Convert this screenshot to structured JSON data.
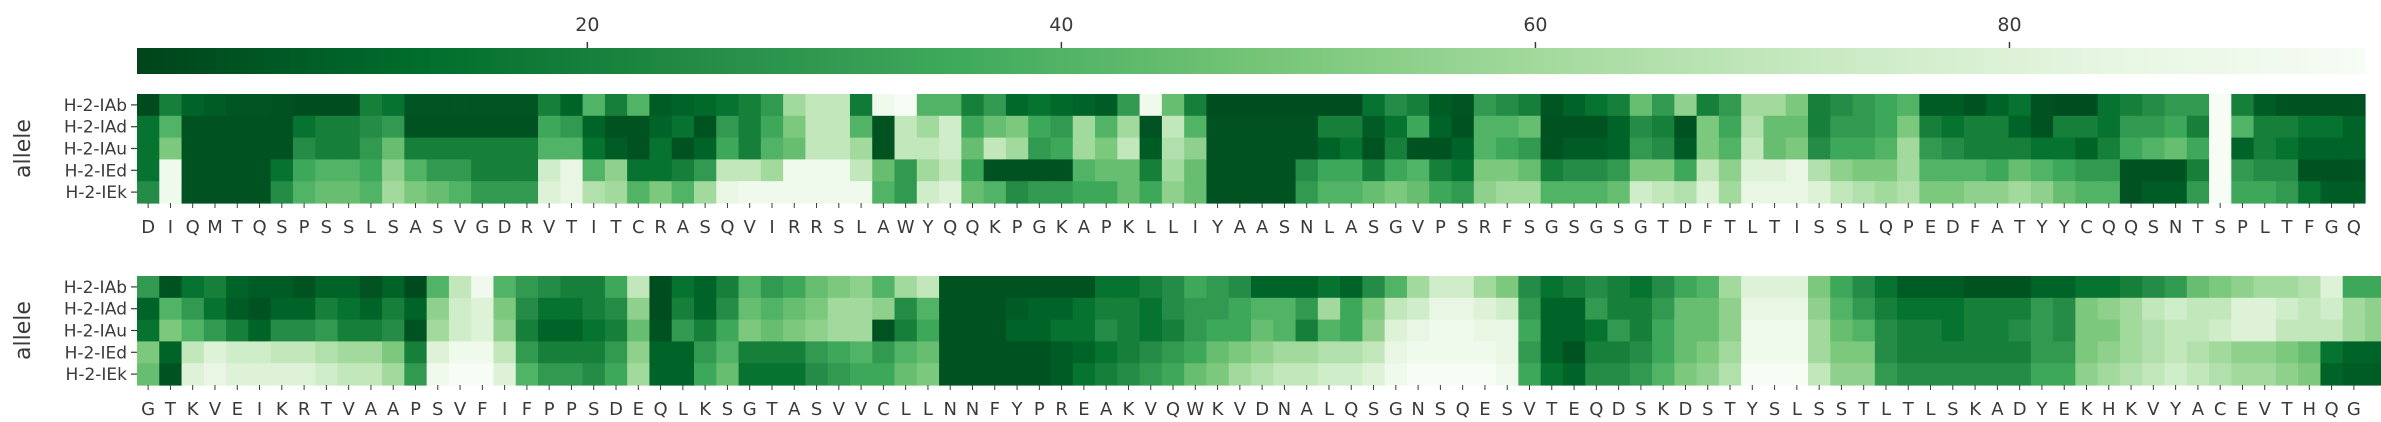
{
  "chart_data": {
    "type": "heatmap",
    "colormap": {
      "name": "Greens_r",
      "stops": [
        "#00441b",
        "#006d2c",
        "#238b45",
        "#41ab5d",
        "#74c476",
        "#a1d99b",
        "#c7e9c0",
        "#e5f5e0",
        "#f7fcf5"
      ],
      "range": [
        1,
        95
      ],
      "ticks": [
        "20",
        "40",
        "60",
        "80"
      ],
      "tick_values": [
        20,
        40,
        60,
        80
      ]
    },
    "ylabel": "allele",
    "alleles": [
      "H-2-IAb",
      "H-2-IAd",
      "H-2-IAu",
      "H-2-IEd",
      "H-2-IEk"
    ],
    "panels": [
      {
        "residues": [
          "D",
          "I",
          "Q",
          "M",
          "T",
          "Q",
          "S",
          "P",
          "S",
          "S",
          "L",
          "S",
          "A",
          "S",
          "V",
          "G",
          "D",
          "R",
          "V",
          "T",
          "I",
          "T",
          "C",
          "R",
          "A",
          "S",
          "Q",
          "V",
          "I",
          "R",
          "R",
          "S",
          "L",
          "A",
          "W",
          "Y",
          "Q",
          "Q",
          "K",
          "P",
          "G",
          "K",
          "A",
          "P",
          "K",
          "L",
          "L",
          "I",
          "Y",
          "A",
          "A",
          "S",
          "N",
          "L",
          "A",
          "S",
          "G",
          "V",
          "P",
          "S",
          "R",
          "F",
          "S",
          "G",
          "S",
          "G",
          "S",
          "G",
          "T",
          "D",
          "F",
          "T",
          "L",
          "T",
          "I",
          "S",
          "S",
          "L",
          "Q",
          "P",
          "E",
          "D",
          "F",
          "A",
          "T",
          "Y",
          "Y",
          "C",
          "Q",
          "Q",
          "S",
          "N",
          "T",
          "S",
          "P",
          "L",
          "T",
          "F",
          "G",
          "Q"
        ],
        "values": [
          [
            3,
            20,
            10,
            8,
            6,
            6,
            5,
            4,
            4,
            4,
            20,
            15,
            6,
            6,
            6,
            6,
            6,
            6,
            20,
            10,
            40,
            20,
            40,
            8,
            10,
            12,
            15,
            20,
            30,
            60,
            70,
            70,
            18,
            90,
            95,
            40,
            40,
            20,
            30,
            12,
            15,
            12,
            10,
            8,
            30,
            90,
            45,
            20,
            4,
            4,
            4,
            4,
            4,
            4,
            4,
            15,
            25,
            20,
            8,
            6,
            30,
            25,
            20,
            6,
            10,
            15,
            20,
            45,
            30,
            55,
            20,
            30,
            60,
            60,
            50,
            20,
            25,
            30,
            35,
            40,
            8,
            8,
            5,
            10,
            15,
            5,
            4,
            4,
            15,
            20,
            25,
            30,
            30,
            95,
            20,
            8,
            5,
            5,
            5,
            5
          ],
          [
            15,
            40,
            5,
            5,
            5,
            5,
            5,
            15,
            20,
            20,
            25,
            30,
            5,
            5,
            5,
            5,
            5,
            5,
            35,
            30,
            10,
            5,
            5,
            10,
            15,
            5,
            30,
            20,
            35,
            50,
            70,
            70,
            40,
            5,
            70,
            60,
            75,
            35,
            45,
            50,
            35,
            30,
            60,
            40,
            60,
            5,
            70,
            40,
            5,
            5,
            5,
            5,
            5,
            20,
            20,
            8,
            15,
            35,
            10,
            5,
            40,
            40,
            45,
            5,
            5,
            5,
            10,
            25,
            20,
            5,
            50,
            35,
            65,
            45,
            45,
            20,
            30,
            30,
            35,
            50,
            20,
            15,
            20,
            20,
            10,
            5,
            20,
            20,
            15,
            30,
            30,
            35,
            20,
            95,
            40,
            20,
            20,
            15,
            15,
            10
          ],
          [
            15,
            50,
            5,
            5,
            5,
            5,
            5,
            25,
            20,
            20,
            30,
            45,
            20,
            20,
            20,
            20,
            20,
            20,
            40,
            40,
            15,
            8,
            5,
            15,
            5,
            10,
            35,
            20,
            40,
            45,
            70,
            70,
            60,
            5,
            70,
            70,
            75,
            45,
            70,
            60,
            30,
            35,
            60,
            50,
            70,
            8,
            65,
            55,
            5,
            5,
            5,
            5,
            5,
            10,
            15,
            5,
            20,
            5,
            5,
            10,
            40,
            35,
            30,
            5,
            8,
            8,
            10,
            30,
            25,
            8,
            50,
            40,
            70,
            45,
            50,
            25,
            35,
            35,
            40,
            60,
            30,
            25,
            20,
            20,
            20,
            15,
            15,
            10,
            20,
            35,
            40,
            45,
            35,
            95,
            10,
            20,
            15,
            10,
            10,
            10
          ],
          [
            15,
            90,
            5,
            5,
            5,
            5,
            15,
            35,
            40,
            40,
            35,
            55,
            40,
            30,
            30,
            20,
            20,
            20,
            75,
            85,
            40,
            55,
            15,
            15,
            20,
            30,
            70,
            70,
            60,
            90,
            90,
            90,
            70,
            45,
            30,
            60,
            70,
            35,
            5,
            5,
            5,
            5,
            40,
            45,
            45,
            20,
            60,
            45,
            5,
            5,
            5,
            5,
            25,
            35,
            35,
            20,
            35,
            40,
            20,
            15,
            50,
            50,
            45,
            20,
            25,
            25,
            30,
            50,
            50,
            35,
            70,
            55,
            80,
            80,
            85,
            65,
            55,
            50,
            50,
            60,
            40,
            40,
            40,
            35,
            45,
            40,
            35,
            30,
            30,
            5,
            5,
            5,
            20,
            95,
            30,
            25,
            25,
            5,
            5,
            5
          ],
          [
            25,
            90,
            5,
            5,
            5,
            5,
            25,
            40,
            45,
            45,
            40,
            60,
            50,
            45,
            40,
            30,
            30,
            30,
            80,
            85,
            65,
            60,
            40,
            50,
            40,
            60,
            85,
            90,
            90,
            90,
            90,
            90,
            90,
            40,
            30,
            75,
            80,
            45,
            40,
            25,
            30,
            30,
            35,
            35,
            45,
            35,
            55,
            45,
            5,
            5,
            5,
            5,
            30,
            40,
            40,
            45,
            50,
            45,
            35,
            30,
            55,
            60,
            60,
            40,
            40,
            40,
            45,
            75,
            70,
            65,
            80,
            60,
            85,
            85,
            85,
            80,
            70,
            65,
            60,
            65,
            50,
            50,
            55,
            55,
            60,
            55,
            45,
            40,
            40,
            5,
            8,
            8,
            30,
            95,
            35,
            35,
            30,
            15,
            8,
            8
          ]
        ]
      },
      {
        "residues": [
          "G",
          "T",
          "K",
          "V",
          "E",
          "I",
          "K",
          "R",
          "T",
          "V",
          "A",
          "A",
          "P",
          "S",
          "V",
          "F",
          "I",
          "F",
          "P",
          "P",
          "S",
          "D",
          "E",
          "Q",
          "L",
          "K",
          "S",
          "G",
          "T",
          "A",
          "S",
          "V",
          "V",
          "C",
          "L",
          "L",
          "N",
          "N",
          "F",
          "Y",
          "P",
          "R",
          "E",
          "A",
          "K",
          "V",
          "Q",
          "W",
          "K",
          "V",
          "D",
          "N",
          "A",
          "L",
          "Q",
          "S",
          "G",
          "N",
          "S",
          "Q",
          "E",
          "S",
          "V",
          "T",
          "E",
          "Q",
          "D",
          "S",
          "K",
          "D",
          "S",
          "T",
          "Y",
          "S",
          "L",
          "S",
          "S",
          "T",
          "L",
          "T",
          "L",
          "S",
          "K",
          "A",
          "D",
          "Y",
          "E",
          "K",
          "H",
          "K",
          "V",
          "Y",
          "A",
          "C",
          "E",
          "V",
          "T",
          "H",
          "Q",
          "G"
        ],
        "values": [
          [
            30,
            5,
            15,
            20,
            10,
            8,
            8,
            5,
            10,
            10,
            5,
            10,
            3,
            40,
            70,
            90,
            40,
            30,
            25,
            20,
            20,
            35,
            70,
            4,
            15,
            10,
            20,
            40,
            30,
            35,
            45,
            50,
            55,
            40,
            60,
            70,
            5,
            5,
            5,
            5,
            5,
            5,
            5,
            15,
            15,
            20,
            25,
            35,
            30,
            25,
            10,
            10,
            10,
            15,
            10,
            25,
            40,
            60,
            75,
            75,
            60,
            50,
            25,
            15,
            20,
            25,
            20,
            15,
            25,
            35,
            40,
            60,
            80,
            80,
            80,
            50,
            35,
            25,
            15,
            8,
            8,
            8,
            5,
            5,
            5,
            10,
            10,
            15,
            15,
            20,
            25,
            30,
            45,
            50,
            55,
            60,
            60,
            65,
            80,
            35,
            35
          ],
          [
            10,
            40,
            30,
            15,
            8,
            5,
            10,
            10,
            20,
            15,
            10,
            20,
            10,
            55,
            75,
            80,
            50,
            25,
            15,
            15,
            20,
            25,
            55,
            4,
            20,
            10,
            25,
            45,
            40,
            45,
            50,
            60,
            60,
            55,
            25,
            40,
            5,
            5,
            5,
            8,
            10,
            10,
            15,
            20,
            20,
            15,
            25,
            30,
            30,
            35,
            40,
            40,
            30,
            60,
            35,
            50,
            70,
            75,
            85,
            85,
            80,
            75,
            30,
            10,
            10,
            30,
            20,
            20,
            30,
            45,
            45,
            55,
            85,
            85,
            85,
            55,
            40,
            30,
            20,
            15,
            15,
            15,
            20,
            20,
            20,
            30,
            25,
            50,
            55,
            60,
            70,
            75,
            70,
            70,
            80,
            80,
            75,
            70,
            75,
            60,
            55
          ],
          [
            15,
            50,
            40,
            30,
            20,
            10,
            25,
            25,
            30,
            20,
            20,
            25,
            5,
            60,
            75,
            80,
            55,
            20,
            10,
            10,
            15,
            20,
            45,
            5,
            30,
            20,
            35,
            50,
            45,
            50,
            55,
            60,
            60,
            5,
            20,
            35,
            5,
            5,
            5,
            10,
            10,
            15,
            15,
            25,
            20,
            15,
            20,
            30,
            35,
            35,
            45,
            40,
            20,
            40,
            35,
            55,
            80,
            85,
            90,
            90,
            85,
            85,
            35,
            10,
            10,
            15,
            30,
            20,
            35,
            45,
            45,
            55,
            90,
            90,
            90,
            60,
            45,
            40,
            25,
            20,
            20,
            15,
            20,
            20,
            25,
            30,
            25,
            50,
            50,
            60,
            65,
            70,
            70,
            75,
            80,
            80,
            70,
            70,
            70,
            60,
            55
          ],
          [
            50,
            10,
            70,
            80,
            75,
            75,
            70,
            70,
            65,
            60,
            60,
            50,
            20,
            80,
            90,
            90,
            70,
            30,
            20,
            20,
            20,
            30,
            55,
            10,
            10,
            30,
            40,
            20,
            20,
            20,
            30,
            35,
            40,
            30,
            40,
            45,
            5,
            5,
            5,
            5,
            5,
            8,
            10,
            15,
            20,
            25,
            30,
            35,
            45,
            50,
            55,
            60,
            60,
            65,
            65,
            70,
            85,
            90,
            90,
            90,
            90,
            85,
            30,
            10,
            5,
            20,
            20,
            25,
            35,
            45,
            50,
            60,
            90,
            90,
            90,
            60,
            50,
            50,
            25,
            20,
            20,
            20,
            20,
            20,
            20,
            30,
            30,
            50,
            55,
            60,
            65,
            70,
            65,
            60,
            55,
            55,
            50,
            45,
            15,
            10,
            10
          ],
          [
            45,
            5,
            80,
            85,
            80,
            80,
            80,
            80,
            75,
            70,
            70,
            60,
            30,
            90,
            95,
            95,
            80,
            40,
            30,
            30,
            25,
            35,
            60,
            10,
            10,
            35,
            45,
            15,
            15,
            15,
            25,
            30,
            35,
            35,
            45,
            50,
            5,
            5,
            5,
            5,
            5,
            8,
            15,
            20,
            25,
            30,
            35,
            45,
            50,
            60,
            65,
            70,
            70,
            75,
            75,
            80,
            90,
            95,
            95,
            95,
            95,
            90,
            35,
            15,
            10,
            25,
            25,
            30,
            40,
            50,
            55,
            65,
            95,
            95,
            95,
            70,
            55,
            55,
            30,
            25,
            25,
            25,
            25,
            25,
            25,
            35,
            35,
            55,
            60,
            65,
            70,
            75,
            70,
            65,
            60,
            60,
            55,
            50,
            10,
            8,
            8
          ]
        ]
      }
    ]
  }
}
